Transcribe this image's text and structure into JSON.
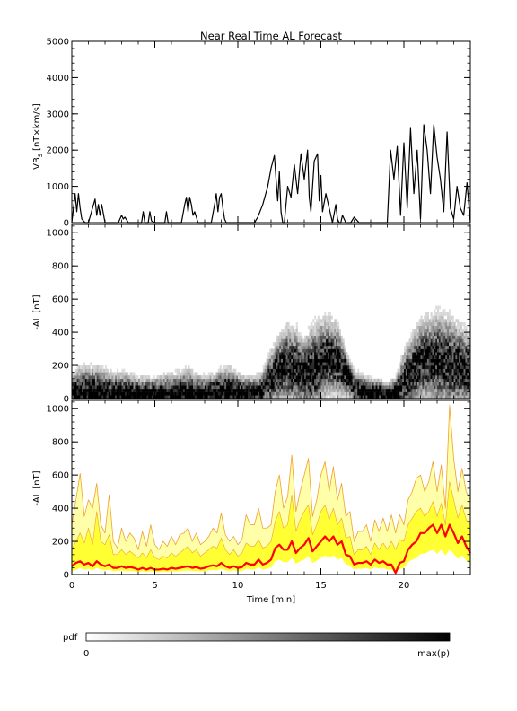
{
  "colors": {
    "background": "#ffffff",
    "axes": "#000000",
    "vbs_line": "#000000",
    "median_line": "#ff0000",
    "band_inner": "#ffff33",
    "band_outer": "#ffffaa",
    "band_edges": "#f0a030",
    "pdf_low": "#ffffff",
    "pdf_high": "#000000"
  },
  "chart_data": [
    {
      "type": "line",
      "title": "Near Real Time AL Forecast",
      "ylabel_main": "VB",
      "ylabel_sub": "s",
      "ylabel_unit": "[nT×km/s]",
      "xlim": [
        0,
        24
      ],
      "ylim": [
        0,
        5000
      ],
      "yticks": [
        0,
        1000,
        2000,
        3000,
        4000,
        5000
      ],
      "series": [
        {
          "x": [
            0,
            0.2,
            0.3,
            0.4,
            0.5,
            0.6,
            0.8,
            1.0,
            1.4,
            1.5,
            1.6,
            1.7,
            1.8,
            2.0,
            2.2,
            2.8,
            3.0,
            3.1,
            3.2,
            3.4,
            4.2,
            4.3,
            4.4,
            4.6,
            4.7,
            4.8,
            5.0,
            5.6,
            5.7,
            5.8,
            6.2,
            6.6,
            6.8,
            6.9,
            7.0,
            7.1,
            7.2,
            7.3,
            7.4,
            7.6,
            8.4,
            8.6,
            8.7,
            8.8,
            8.9,
            9.0,
            9.1,
            9.2,
            9.3,
            9.5,
            10.5,
            11.0,
            11.2,
            11.5,
            11.8,
            12.0,
            12.2,
            12.3,
            12.4,
            12.5,
            12.6,
            12.7,
            12.8,
            13.0,
            13.2,
            13.4,
            13.6,
            13.8,
            14.0,
            14.2,
            14.3,
            14.4,
            14.6,
            14.8,
            14.9,
            15.0,
            15.1,
            15.3,
            15.5,
            15.7,
            15.9,
            16.0,
            16.1,
            16.2,
            16.3,
            16.5,
            16.8,
            17.0,
            17.3,
            17.5,
            17.6,
            17.8,
            18.0,
            19.0,
            19.2,
            19.4,
            19.6,
            19.8,
            20.0,
            20.2,
            20.4,
            20.6,
            20.8,
            21.0,
            21.2,
            21.4,
            21.6,
            21.8,
            22.0,
            22.2,
            22.4,
            22.6,
            22.8,
            23.0,
            23.2,
            23.4,
            23.6,
            23.8,
            24.0
          ],
          "values": [
            0,
            800,
            300,
            800,
            400,
            100,
            0,
            0,
            650,
            200,
            500,
            200,
            500,
            0,
            0,
            0,
            200,
            100,
            150,
            0,
            0,
            300,
            0,
            0,
            300,
            50,
            0,
            0,
            300,
            0,
            0,
            0,
            500,
            700,
            300,
            700,
            500,
            200,
            300,
            0,
            0,
            500,
            800,
            300,
            700,
            800,
            400,
            100,
            0,
            0,
            0,
            0,
            150,
            500,
            1000,
            1500,
            1850,
            1200,
            600,
            1400,
            300,
            0,
            0,
            1000,
            700,
            1600,
            800,
            1900,
            1200,
            2000,
            700,
            300,
            1700,
            1900,
            600,
            1300,
            300,
            800,
            400,
            0,
            500,
            100,
            0,
            0,
            200,
            0,
            0,
            150,
            0,
            0,
            0,
            0,
            0,
            0,
            2000,
            1200,
            2100,
            200,
            2200,
            400,
            2600,
            800,
            2000,
            100,
            2700,
            2000,
            800,
            2700,
            1800,
            1200,
            300,
            2500,
            400,
            100,
            1000,
            400,
            200,
            1100,
            0
          ]
        }
      ]
    },
    {
      "type": "heatmap",
      "ylabel": "-AL [nT]",
      "xlim": [
        0,
        24
      ],
      "ylim": [
        0,
        1050
      ],
      "yticks": [
        0,
        200,
        400,
        600,
        800,
        1000
      ],
      "profile": {
        "x": [
          0,
          0.5,
          1,
          1.5,
          2,
          2.5,
          3,
          3.5,
          4,
          4.5,
          5,
          5.5,
          6,
          6.5,
          7,
          7.5,
          8,
          8.5,
          9,
          9.5,
          10,
          10.5,
          11,
          11.5,
          12,
          12.5,
          13,
          13.5,
          14,
          14.5,
          15,
          15.5,
          16,
          16.5,
          17,
          17.5,
          18,
          18.5,
          19,
          19.5,
          20,
          20.5,
          21,
          21.5,
          22,
          22.5,
          23,
          23.5,
          24
        ],
        "center": [
          40,
          45,
          45,
          40,
          40,
          35,
          35,
          35,
          30,
          30,
          30,
          30,
          30,
          30,
          35,
          35,
          35,
          40,
          45,
          45,
          45,
          40,
          40,
          60,
          120,
          170,
          200,
          180,
          150,
          170,
          220,
          250,
          230,
          150,
          70,
          50,
          40,
          40,
          20,
          40,
          100,
          160,
          220,
          230,
          230,
          220,
          200,
          190,
          170
        ],
        "spread": [
          120,
          200,
          200,
          220,
          180,
          150,
          160,
          140,
          120,
          120,
          120,
          140,
          150,
          170,
          200,
          140,
          120,
          130,
          180,
          200,
          130,
          110,
          100,
          140,
          230,
          300,
          360,
          350,
          300,
          400,
          380,
          340,
          320,
          200,
          120,
          110,
          90,
          80,
          80,
          100,
          260,
          320,
          360,
          380,
          420,
          420,
          400,
          360,
          300
        ]
      },
      "colorbar": {
        "label": "pdf",
        "min_label": "0",
        "max_label": "max(p)"
      }
    },
    {
      "type": "area",
      "ylabel": "-AL [nT]",
      "xlabel": "Time [min]",
      "xlim": [
        0,
        24
      ],
      "ylim": [
        0,
        1050
      ],
      "xticks": [
        0,
        5,
        10,
        15,
        20
      ],
      "yticks": [
        0,
        200,
        400,
        600,
        800,
        1000
      ],
      "x": [
        0,
        0.25,
        0.5,
        0.75,
        1.0,
        1.25,
        1.5,
        1.75,
        2.0,
        2.25,
        2.5,
        2.75,
        3.0,
        3.25,
        3.5,
        3.75,
        4.0,
        4.25,
        4.5,
        4.75,
        5.0,
        5.25,
        5.5,
        5.75,
        6.0,
        6.25,
        6.5,
        6.75,
        7.0,
        7.25,
        7.5,
        7.75,
        8.0,
        8.25,
        8.5,
        8.75,
        9.0,
        9.25,
        9.5,
        9.75,
        10.0,
        10.25,
        10.5,
        10.75,
        11.0,
        11.25,
        11.5,
        11.75,
        12.0,
        12.25,
        12.5,
        12.75,
        13.0,
        13.25,
        13.5,
        13.75,
        14.0,
        14.25,
        14.5,
        14.75,
        15.0,
        15.25,
        15.5,
        15.75,
        16.0,
        16.25,
        16.5,
        16.75,
        17.0,
        17.25,
        17.5,
        17.75,
        18.0,
        18.25,
        18.5,
        18.75,
        19.0,
        19.25,
        19.5,
        19.75,
        20.0,
        20.25,
        20.5,
        20.75,
        21.0,
        21.25,
        21.5,
        21.75,
        22.0,
        22.25,
        22.5,
        22.75,
        23.0,
        23.25,
        23.5,
        23.75,
        24.0
      ],
      "series": [
        {
          "name": "outer-upper",
          "values": [
            300,
            450,
            610,
            350,
            450,
            400,
            550,
            300,
            250,
            480,
            200,
            160,
            280,
            200,
            250,
            220,
            150,
            260,
            170,
            300,
            180,
            150,
            200,
            170,
            230,
            180,
            240,
            250,
            280,
            200,
            250,
            180,
            200,
            230,
            280,
            250,
            370,
            240,
            200,
            230,
            180,
            210,
            360,
            300,
            300,
            400,
            280,
            280,
            300,
            500,
            600,
            400,
            470,
            720,
            380,
            500,
            600,
            700,
            350,
            450,
            600,
            680,
            500,
            650,
            450,
            550,
            350,
            380,
            200,
            260,
            260,
            300,
            200,
            330,
            260,
            340,
            260,
            360,
            250,
            360,
            300,
            450,
            500,
            580,
            600,
            500,
            560,
            680,
            500,
            660,
            400,
            1020,
            700,
            500,
            640,
            500,
            450
          ]
        },
        {
          "name": "inner-upper",
          "values": [
            150,
            200,
            250,
            190,
            280,
            180,
            380,
            200,
            180,
            240,
            120,
            120,
            150,
            120,
            140,
            120,
            100,
            130,
            100,
            150,
            100,
            90,
            110,
            100,
            130,
            110,
            130,
            150,
            170,
            130,
            150,
            110,
            130,
            150,
            170,
            160,
            220,
            150,
            120,
            150,
            110,
            130,
            190,
            170,
            170,
            210,
            160,
            170,
            200,
            320,
            380,
            280,
            300,
            480,
            260,
            330,
            380,
            420,
            240,
            300,
            380,
            420,
            330,
            400,
            300,
            340,
            220,
            230,
            120,
            150,
            150,
            170,
            120,
            190,
            150,
            190,
            150,
            200,
            150,
            210,
            200,
            300,
            340,
            380,
            400,
            350,
            380,
            440,
            350,
            430,
            300,
            560,
            450,
            340,
            420,
            330,
            300
          ]
        },
        {
          "name": "median",
          "values": [
            50,
            70,
            80,
            60,
            70,
            50,
            80,
            60,
            50,
            60,
            40,
            40,
            50,
            40,
            45,
            40,
            30,
            40,
            30,
            40,
            30,
            30,
            35,
            30,
            40,
            35,
            40,
            45,
            50,
            40,
            45,
            35,
            40,
            50,
            55,
            50,
            70,
            50,
            40,
            50,
            40,
            45,
            70,
            60,
            60,
            90,
            60,
            70,
            90,
            160,
            180,
            150,
            150,
            200,
            130,
            160,
            180,
            220,
            140,
            170,
            200,
            230,
            200,
            230,
            180,
            200,
            120,
            110,
            60,
            70,
            70,
            80,
            60,
            90,
            70,
            80,
            60,
            60,
            10,
            70,
            80,
            150,
            180,
            200,
            250,
            250,
            280,
            300,
            250,
            300,
            230,
            300,
            250,
            190,
            230,
            170,
            130
          ]
        },
        {
          "name": "lower",
          "values": [
            20,
            30,
            40,
            30,
            35,
            25,
            40,
            30,
            25,
            30,
            20,
            20,
            25,
            20,
            22,
            20,
            15,
            20,
            15,
            20,
            15,
            15,
            18,
            15,
            20,
            18,
            20,
            22,
            25,
            20,
            22,
            18,
            20,
            25,
            28,
            25,
            35,
            25,
            20,
            25,
            20,
            22,
            35,
            30,
            30,
            45,
            30,
            35,
            45,
            80,
            90,
            75,
            75,
            100,
            65,
            80,
            90,
            110,
            70,
            85,
            100,
            115,
            100,
            115,
            90,
            100,
            60,
            55,
            30,
            35,
            35,
            40,
            30,
            45,
            35,
            40,
            30,
            30,
            5,
            35,
            40,
            75,
            90,
            100,
            125,
            125,
            140,
            150,
            125,
            150,
            115,
            150,
            125,
            95,
            115,
            85,
            65
          ]
        }
      ]
    }
  ]
}
